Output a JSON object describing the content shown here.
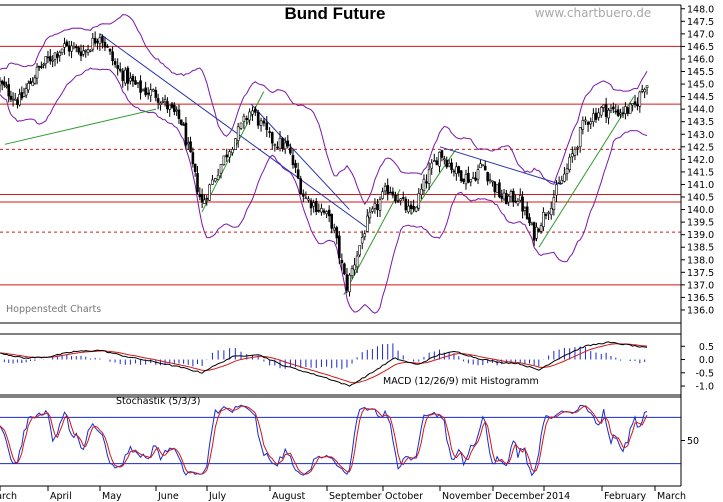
{
  "chart_data": {
    "type": "candlestick",
    "title": "Bund Future",
    "watermark": "www.chartbuero.de",
    "source_label": "Hoppenstedt Charts",
    "months": [
      "March",
      "April",
      "May",
      "June",
      "July",
      "August",
      "September",
      "October",
      "November",
      "December",
      "2014",
      "February",
      "March"
    ],
    "price_axis": {
      "ylim": [
        135.6,
        148.15
      ],
      "ticks": [
        "148.0",
        "147.5",
        "147.0",
        "146.5",
        "146.0",
        "145.5",
        "145.0",
        "144.5",
        "144.0",
        "143.5",
        "143.0",
        "142.5",
        "142.0",
        "141.5",
        "141.0",
        "140.5",
        "140.0",
        "139.5",
        "139.0",
        "138.5",
        "138.0",
        "137.5",
        "137.0",
        "136.5",
        "136.0"
      ]
    },
    "price_keypoints": [
      {
        "m": 0,
        "v": 145.0
      },
      {
        "m": 0.4,
        "v": 144.3
      },
      {
        "m": 0.8,
        "v": 145.6
      },
      {
        "m": 1.3,
        "v": 146.5
      },
      {
        "m": 1.7,
        "v": 146.3
      },
      {
        "m": 2.0,
        "v": 147.0
      },
      {
        "m": 2.3,
        "v": 145.6
      },
      {
        "m": 2.7,
        "v": 144.8
      },
      {
        "m": 3.0,
        "v": 144.6
      },
      {
        "m": 3.5,
        "v": 143.5
      },
      {
        "m": 3.9,
        "v": 140.2
      },
      {
        "m": 4.3,
        "v": 142.2
      },
      {
        "m": 4.7,
        "v": 144.0
      },
      {
        "m": 5.0,
        "v": 142.8
      },
      {
        "m": 5.3,
        "v": 142.5
      },
      {
        "m": 5.6,
        "v": 140.5
      },
      {
        "m": 5.9,
        "v": 140.0
      },
      {
        "m": 6.1,
        "v": 139.4
      },
      {
        "m": 6.35,
        "v": 136.9
      },
      {
        "m": 6.7,
        "v": 139.4
      },
      {
        "m": 7.1,
        "v": 140.9
      },
      {
        "m": 7.5,
        "v": 139.8
      },
      {
        "m": 7.8,
        "v": 141.4
      },
      {
        "m": 8.0,
        "v": 142.3
      },
      {
        "m": 8.3,
        "v": 141.5
      },
      {
        "m": 8.6,
        "v": 141.2
      },
      {
        "m": 8.8,
        "v": 141.8
      },
      {
        "m": 9.0,
        "v": 141.0
      },
      {
        "m": 9.2,
        "v": 140.4
      },
      {
        "m": 9.5,
        "v": 140.5
      },
      {
        "m": 9.8,
        "v": 139.0
      },
      {
        "m": 10.1,
        "v": 140.2
      },
      {
        "m": 10.4,
        "v": 141.6
      },
      {
        "m": 10.7,
        "v": 143.5
      },
      {
        "m": 11.0,
        "v": 144.0
      },
      {
        "m": 11.3,
        "v": 143.9
      },
      {
        "m": 11.6,
        "v": 144.0
      },
      {
        "m": 11.8,
        "v": 145.0
      }
    ],
    "horizontal_levels": [
      {
        "value": 146.5,
        "style": "solid"
      },
      {
        "value": 144.2,
        "style": "solid"
      },
      {
        "value": 142.4,
        "style": "dashed"
      },
      {
        "value": 140.6,
        "style": "solid"
      },
      {
        "value": 140.3,
        "style": "solid"
      },
      {
        "value": 139.1,
        "style": "dashed"
      },
      {
        "value": 137.0,
        "style": "solid"
      }
    ],
    "trend_lines": [
      {
        "color": "#2f9a2f",
        "from": {
          "m": 0.1,
          "v": 142.6
        },
        "to": {
          "m": 3.0,
          "v": 144.0
        }
      },
      {
        "color": "#2233aa",
        "from": {
          "m": 2.0,
          "v": 147.0
        },
        "to": {
          "m": 6.7,
          "v": 139.3
        }
      },
      {
        "color": "#2f9a2f",
        "from": {
          "m": 3.9,
          "v": 139.9
        },
        "to": {
          "m": 4.9,
          "v": 144.7
        }
      },
      {
        "color": "#2233aa",
        "from": {
          "m": 4.7,
          "v": 144.2
        },
        "to": {
          "m": 6.4,
          "v": 140.0
        }
      },
      {
        "color": "#2f9a2f",
        "from": {
          "m": 6.3,
          "v": 136.6
        },
        "to": {
          "m": 7.3,
          "v": 140.8
        }
      },
      {
        "color": "#2f9a2f",
        "from": {
          "m": 7.5,
          "v": 139.8
        },
        "to": {
          "m": 8.3,
          "v": 142.4
        }
      },
      {
        "color": "#2233aa",
        "from": {
          "m": 8.0,
          "v": 142.5
        },
        "to": {
          "m": 10.3,
          "v": 141.0
        }
      },
      {
        "color": "#2f9a2f",
        "from": {
          "m": 9.9,
          "v": 138.5
        },
        "to": {
          "m": 11.6,
          "v": 144.5
        }
      }
    ],
    "macd": {
      "label": "MACD (12/26/9) mit Histogramm",
      "ylim": [
        -1.3,
        0.85
      ],
      "ticks": [
        "0.5",
        "0.0",
        "-0.5",
        "-1.0"
      ],
      "keypoints": [
        {
          "m": 0,
          "v": 0.25
        },
        {
          "m": 0.5,
          "v": 0.05
        },
        {
          "m": 1.0,
          "v": 0.1
        },
        {
          "m": 1.5,
          "v": 0.3
        },
        {
          "m": 2.0,
          "v": 0.35
        },
        {
          "m": 2.5,
          "v": 0.1
        },
        {
          "m": 3.0,
          "v": -0.1
        },
        {
          "m": 3.5,
          "v": -0.3
        },
        {
          "m": 3.9,
          "v": -0.5
        },
        {
          "m": 4.4,
          "v": 0.1
        },
        {
          "m": 4.8,
          "v": 0.2
        },
        {
          "m": 5.2,
          "v": -0.2
        },
        {
          "m": 5.6,
          "v": -0.45
        },
        {
          "m": 6.0,
          "v": -0.7
        },
        {
          "m": 6.4,
          "v": -1.0
        },
        {
          "m": 6.8,
          "v": -0.5
        },
        {
          "m": 7.2,
          "v": 0.05
        },
        {
          "m": 7.6,
          "v": -0.2
        },
        {
          "m": 8.0,
          "v": 0.2
        },
        {
          "m": 8.3,
          "v": 0.3
        },
        {
          "m": 8.7,
          "v": 0.05
        },
        {
          "m": 9.1,
          "v": -0.1
        },
        {
          "m": 9.5,
          "v": -0.15
        },
        {
          "m": 9.9,
          "v": -0.4
        },
        {
          "m": 10.3,
          "v": 0.1
        },
        {
          "m": 10.7,
          "v": 0.5
        },
        {
          "m": 11.1,
          "v": 0.65
        },
        {
          "m": 11.5,
          "v": 0.55
        },
        {
          "m": 11.8,
          "v": 0.45
        }
      ]
    },
    "stochastic": {
      "label": "Stochastik (5/3/3)",
      "params": [
        5,
        3,
        3
      ],
      "ylim": [
        -5,
        105
      ],
      "ticks": [
        "50"
      ],
      "levels": [
        80,
        20
      ]
    },
    "colors": {
      "price_line": "#000000",
      "bands": "#7a18a8",
      "level_lines": "#d01818",
      "signal": "#d01818",
      "macd_line": "#000000",
      "histogram": "#1a2acc",
      "stoch_k": "#1a2acc",
      "stoch_d": "#d01818"
    }
  }
}
